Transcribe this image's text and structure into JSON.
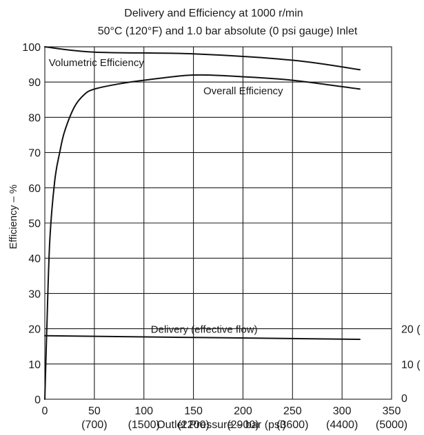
{
  "chart_data": {
    "type": "line",
    "title": "Delivery and Efficiency at 1000 r/min",
    "subtitle": "50°C (120°F) and 1.0 bar absolute (0 psi gauge) Inlet",
    "xlabel": "Outlet Pressure – bar (psi)",
    "ylabel": "Efficiency – %",
    "xlim": [
      0,
      350
    ],
    "ylim": [
      0,
      100
    ],
    "grid": true,
    "x_ticks": [
      {
        "value": 0,
        "label": "0",
        "sublabel": ""
      },
      {
        "value": 50,
        "label": "50",
        "sublabel": "(700)"
      },
      {
        "value": 100,
        "label": "100",
        "sublabel": "(1500)"
      },
      {
        "value": 150,
        "label": "150",
        "sublabel": "(2200)"
      },
      {
        "value": 200,
        "label": "200",
        "sublabel": "(2900)"
      },
      {
        "value": 250,
        "label": "250",
        "sublabel": "(3600)"
      },
      {
        "value": 300,
        "label": "300",
        "sublabel": "(4400)"
      },
      {
        "value": 350,
        "label": "350",
        "sublabel": "(5000)"
      }
    ],
    "y_ticks": [
      0,
      10,
      20,
      30,
      40,
      50,
      60,
      70,
      80,
      90,
      100
    ],
    "right_axis_ticks": [
      {
        "value": 0,
        "label": "0"
      },
      {
        "value": 10,
        "label": "10 ("
      },
      {
        "value": 20,
        "label": "20 ("
      }
    ],
    "series": [
      {
        "name": "Volumetric Efficiency",
        "x": [
          0,
          50,
          150,
          250,
          318
        ],
        "y": [
          100,
          98.5,
          98,
          96.2,
          93.5
        ]
      },
      {
        "name": "Overall Efficiency",
        "x": [
          0,
          2,
          5,
          10,
          15,
          20,
          30,
          40,
          50,
          75,
          100,
          150,
          200,
          250,
          318
        ],
        "y": [
          0,
          20,
          45,
          62,
          70,
          76,
          83,
          86.5,
          88,
          89.5,
          90.5,
          92,
          91.5,
          90.5,
          88
        ]
      },
      {
        "name": "Delivery (effective flow)",
        "x": [
          0,
          318
        ],
        "y": [
          18,
          17
        ]
      }
    ],
    "annotations": [
      {
        "text": "Volumetric Efficiency",
        "x": 4,
        "y": 94.5,
        "anchor": "start"
      },
      {
        "text": "Overall Efficiency",
        "x": 160,
        "y": 86.5,
        "anchor": "start"
      },
      {
        "text": "Delivery (effective flow)",
        "x": 107,
        "y": 18.8,
        "anchor": "start"
      }
    ]
  }
}
